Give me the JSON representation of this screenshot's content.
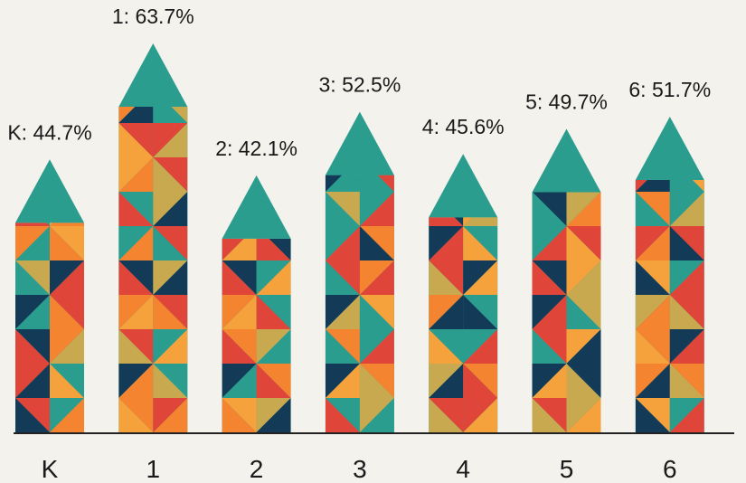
{
  "chart_data": {
    "type": "bar",
    "categories": [
      "K",
      "1",
      "2",
      "3",
      "4",
      "5",
      "6"
    ],
    "values": [
      44.7,
      63.7,
      42.1,
      52.5,
      45.6,
      49.7,
      51.7
    ],
    "value_labels": [
      "K: 44.7%",
      "1: 63.7%",
      "2: 42.1%",
      "3: 52.5%",
      "4: 45.6%",
      "5: 49.7%",
      "6: 51.7%"
    ],
    "color": "#2a9d8f"
  }
}
